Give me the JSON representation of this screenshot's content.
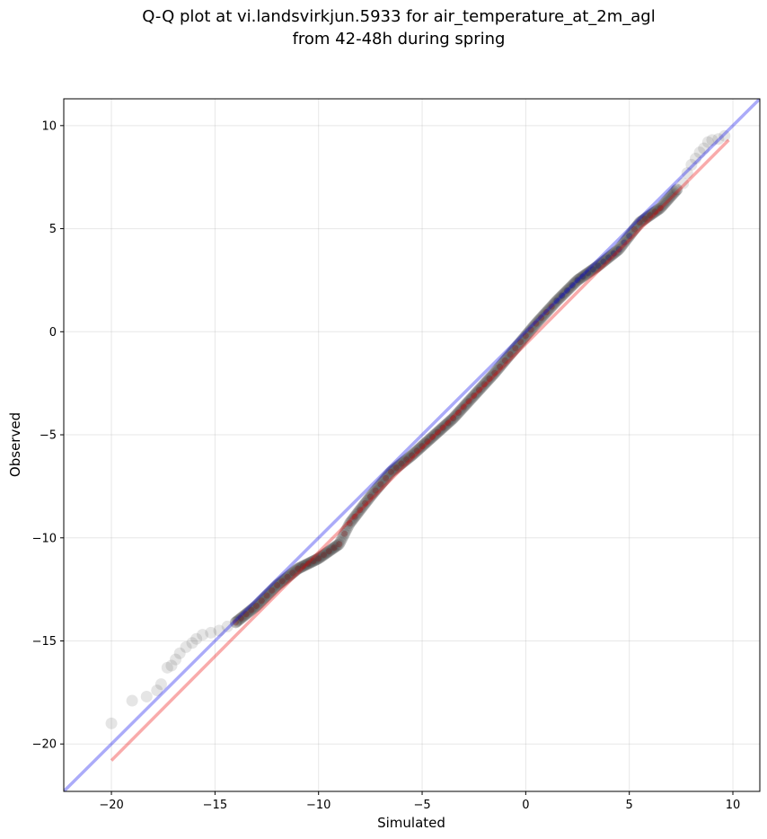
{
  "chart_data": {
    "type": "scatter",
    "title": "Q-Q plot at vi.landsvirkjun.5933 for air_temperature_at_2m_agl\nfrom 42-48h during spring",
    "xlabel": "Simulated",
    "ylabel": "Observed",
    "xlim": [
      -22.3,
      11.3
    ],
    "ylim": [
      -22.3,
      11.3
    ],
    "xticks": [
      -20,
      -15,
      -10,
      -5,
      0,
      5,
      10
    ],
    "yticks": [
      -20,
      -15,
      -10,
      -5,
      0,
      5,
      10
    ],
    "xtick_labels": [
      "−20",
      "−15",
      "−10",
      "−5",
      "0",
      "5",
      "10"
    ],
    "ytick_labels": [
      "−20",
      "−15",
      "−10",
      "−5",
      "0",
      "5",
      "10"
    ],
    "grid": true,
    "colors": {
      "points": "#333333",
      "identity_line": "#0000ee",
      "fit_line": "#ee0000",
      "dense_red": "#8b0000",
      "dense_blue": "#000080"
    },
    "series": [
      {
        "kind": "quantiles",
        "outliers_low": [
          [
            -20.0,
            -19.0
          ],
          [
            -19.0,
            -17.9
          ],
          [
            -18.3,
            -17.7
          ],
          [
            -17.8,
            -17.4
          ],
          [
            -17.6,
            -17.1
          ],
          [
            -17.3,
            -16.3
          ],
          [
            -17.1,
            -16.2
          ],
          [
            -16.9,
            -15.9
          ],
          [
            -16.7,
            -15.6
          ],
          [
            -16.4,
            -15.3
          ],
          [
            -16.1,
            -15.1
          ],
          [
            -15.9,
            -14.9
          ],
          [
            -15.6,
            -14.7
          ],
          [
            -15.2,
            -14.6
          ],
          [
            -14.8,
            -14.5
          ],
          [
            -14.4,
            -14.3
          ],
          [
            -14.0,
            -14.1
          ]
        ],
        "outliers_high": [
          [
            7.3,
            6.9
          ],
          [
            7.6,
            7.2
          ],
          [
            7.8,
            7.7
          ],
          [
            8.0,
            8.1
          ],
          [
            8.2,
            8.4
          ],
          [
            8.4,
            8.7
          ],
          [
            8.6,
            8.9
          ],
          [
            8.8,
            9.2
          ],
          [
            9.0,
            9.3
          ],
          [
            9.3,
            9.35
          ],
          [
            9.6,
            9.5
          ]
        ],
        "body": [
          [
            -14.0,
            -14.1
          ],
          [
            -13.0,
            -13.3
          ],
          [
            -12.0,
            -12.3
          ],
          [
            -11.0,
            -11.5
          ],
          [
            -10.0,
            -11.0
          ],
          [
            -9.0,
            -10.3
          ],
          [
            -8.5,
            -9.3
          ],
          [
            -7.5,
            -8.0
          ],
          [
            -6.5,
            -6.8
          ],
          [
            -5.5,
            -6.0
          ],
          [
            -4.5,
            -5.1
          ],
          [
            -3.5,
            -4.2
          ],
          [
            -2.5,
            -3.1
          ],
          [
            -1.5,
            -2.0
          ],
          [
            -0.5,
            -0.8
          ],
          [
            0.5,
            0.4
          ],
          [
            1.5,
            1.5
          ],
          [
            2.5,
            2.5
          ],
          [
            3.5,
            3.2
          ],
          [
            4.5,
            4.0
          ],
          [
            5.5,
            5.3
          ],
          [
            6.5,
            6.0
          ],
          [
            7.3,
            6.9
          ]
        ]
      }
    ],
    "reference_lines": [
      {
        "kind": "identity",
        "x": [
          -22.3,
          11.3
        ],
        "y": [
          -22.3,
          11.3
        ]
      },
      {
        "kind": "fit",
        "x": [
          -20.0,
          9.8
        ],
        "y": [
          -20.8,
          9.3
        ]
      }
    ]
  }
}
